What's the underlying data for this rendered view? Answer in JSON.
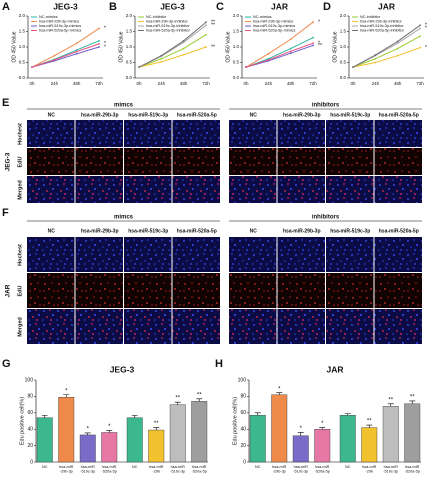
{
  "chart_data": [
    {
      "type": "line",
      "panel": "A",
      "title": "JEG-3",
      "ylabel": "OD 450 Value",
      "categories": [
        "0h",
        "24h",
        "48h",
        "72h"
      ],
      "ylim": [
        0,
        2
      ],
      "yticks": [
        {
          "value": 0,
          "label": "0.0"
        },
        0.5,
        {
          "value": 1,
          "label": "1.0"
        },
        1.5,
        {
          "value": 2,
          "label": "2.0"
        }
      ],
      "series": [
        {
          "name": "NC-mimics",
          "color": "#2bb5a0",
          "values": [
            0.35,
            0.6,
            0.9,
            1.2
          ]
        },
        {
          "name": "hsa-miR-29b-3p-mimics",
          "color": "#f08a4b",
          "values": [
            0.35,
            0.72,
            1.12,
            1.6
          ],
          "significance": "*"
        },
        {
          "name": "hsa-miR-519c-3p-mimics",
          "color": "#6a5acd",
          "values": [
            0.35,
            0.55,
            0.78,
            1.0
          ],
          "significance": "*"
        },
        {
          "name": "hsa-miR-520a-5p-mimics",
          "color": "#e75480",
          "values": [
            0.35,
            0.58,
            0.85,
            1.1
          ],
          "significance": "*"
        }
      ]
    },
    {
      "type": "line",
      "panel": "B",
      "title": "JEG-3",
      "ylabel": "OD 450 Value",
      "categories": [
        "0h",
        "24h",
        "48h",
        "72h"
      ],
      "ylim": [
        0,
        2
      ],
      "yticks": [
        {
          "value": 0,
          "label": "0.0"
        },
        0.5,
        {
          "value": 1,
          "label": "1.0"
        },
        1.5,
        {
          "value": 2,
          "label": "2.0"
        }
      ],
      "series": [
        {
          "name": "NC-inhibitor",
          "color": "#9acd32",
          "values": [
            0.35,
            0.62,
            0.95,
            1.4
          ]
        },
        {
          "name": "hsa-miR-29b-3p-inhibitor",
          "color": "#f2c12e",
          "values": [
            0.35,
            0.52,
            0.75,
            1.0
          ],
          "significance": "**"
        },
        {
          "name": "hsa-miR-519c-3p-inhibitor",
          "color": "#a9a9a9",
          "values": [
            0.35,
            0.7,
            1.15,
            1.7
          ],
          "significance": "**"
        },
        {
          "name": "hsa-miR-520a-5p-inhibitor",
          "color": "#707070",
          "values": [
            0.35,
            0.72,
            1.2,
            1.8
          ],
          "significance": "**"
        }
      ]
    },
    {
      "type": "line",
      "panel": "C",
      "title": "JAR",
      "ylabel": "OD 450 Value",
      "categories": [
        "0h",
        "24h",
        "48h",
        "72h"
      ],
      "ylim": [
        0,
        2
      ],
      "yticks": [
        {
          "value": 0,
          "label": "0.0"
        },
        0.5,
        {
          "value": 1,
          "label": "1.0"
        },
        1.5,
        {
          "value": 2,
          "label": "2.0"
        }
      ],
      "series": [
        {
          "name": "NC-mimics",
          "color": "#2bb5a0",
          "values": [
            0.35,
            0.62,
            0.95,
            1.3
          ]
        },
        {
          "name": "hsa-miR-29b-3p-mimics",
          "color": "#f08a4b",
          "values": [
            0.35,
            0.78,
            1.25,
            1.8
          ],
          "significance": "*"
        },
        {
          "name": "hsa-miR-519c-3p-mimics",
          "color": "#6a5acd",
          "values": [
            0.35,
            0.55,
            0.8,
            1.05
          ],
          "significance": "**"
        },
        {
          "name": "hsa-miR-520a-5p-mimics",
          "color": "#e75480",
          "values": [
            0.35,
            0.58,
            0.86,
            1.12
          ],
          "significance": "*"
        }
      ]
    },
    {
      "type": "line",
      "panel": "D",
      "title": "JAR",
      "ylabel": "OD 450 Value",
      "categories": [
        "0h",
        "24h",
        "48h",
        "72h"
      ],
      "ylim": [
        0,
        2
      ],
      "yticks": [
        {
          "value": 0,
          "label": "0.0"
        },
        0.5,
        {
          "value": 1,
          "label": "1.0"
        },
        1.5,
        {
          "value": 2,
          "label": "2.0"
        }
      ],
      "series": [
        {
          "name": "NC-inhibitor",
          "color": "#9acd32",
          "values": [
            0.35,
            0.62,
            0.95,
            1.35
          ]
        },
        {
          "name": "hsa-miR-29b-3p-inhibitor",
          "color": "#f2c12e",
          "values": [
            0.35,
            0.5,
            0.72,
            0.98
          ],
          "significance": "**"
        },
        {
          "name": "hsa-miR-519c-3p-inhibitor",
          "color": "#a9a9a9",
          "values": [
            0.35,
            0.72,
            1.12,
            1.6
          ],
          "significance": "**"
        },
        {
          "name": "hsa-miR-520a-5p-inhibitor",
          "color": "#707070",
          "values": [
            0.35,
            0.74,
            1.18,
            1.7
          ],
          "significance": "**"
        }
      ]
    },
    {
      "type": "bar",
      "panel": "G",
      "title": "JEG-3",
      "ylabel": "Edu positive cell(%)",
      "categories": [
        "NC",
        "hsa-miR-29b-3p",
        "hsa-miR-519c-3p",
        "hsa-miR-520a-5p",
        "NC",
        "hsa-miR-29b",
        "hsa-miR-519c-3p",
        "hsa-miR-520a-5p"
      ],
      "values": [
        54,
        79,
        33,
        36,
        54,
        39,
        70,
        74
      ],
      "errors": [
        3,
        3,
        2.5,
        2.5,
        3,
        3,
        3,
        3
      ],
      "colors": [
        "#3cb88f",
        "#f08a4b",
        "#7b6bc9",
        "#e778a6",
        "#3cb88f",
        "#f2c12e",
        "#bdbdbd",
        "#9e9e9e"
      ],
      "significance": [
        null,
        "*",
        "*",
        "*",
        null,
        "**",
        "**",
        "**"
      ],
      "ylim": [
        0,
        100
      ],
      "yticks": [
        0,
        20,
        40,
        60,
        80,
        100
      ]
    },
    {
      "type": "bar",
      "panel": "H",
      "title": "JAR",
      "ylabel": "Edu positive cell(%)",
      "categories": [
        "NC",
        "hsa-miR-29b-3p",
        "hsa-miR-519c-3p",
        "hsa-miR-520a-5p",
        "NC",
        "hsa-miR-29b",
        "hsa-miR-519c-3p",
        "hsa-miR-520a-5p"
      ],
      "values": [
        57,
        82,
        32,
        40,
        57,
        42,
        68,
        71
      ],
      "errors": [
        3,
        2.5,
        4,
        2,
        2,
        3,
        3,
        3.5
      ],
      "colors": [
        "#3cb88f",
        "#f08a4b",
        "#7b6bc9",
        "#e778a6",
        "#3cb88f",
        "#f2c12e",
        "#bdbdbd",
        "#9e9e9e"
      ],
      "significance": [
        null,
        "*",
        "*",
        "*",
        null,
        "**",
        "**",
        "**"
      ],
      "ylim": [
        0,
        100
      ],
      "yticks": [
        0,
        20,
        40,
        60,
        80,
        100
      ]
    }
  ],
  "panels": [
    {
      "label": "E",
      "cell_line": "JEG-3",
      "groups": [
        "mimcs",
        "inhibitors"
      ],
      "columns": [
        "NC",
        "hsa-miR-29b-3p",
        "hsa-miR-519c-3p",
        "hsa-miR-520a-5p",
        "NC",
        "hsa-miR-29b-3p",
        "hsa-miR-519c-3p",
        "hsa-miR-520a-5p"
      ],
      "rows": [
        "Hochest",
        "EdU",
        "Merged"
      ]
    },
    {
      "label": "F",
      "cell_line": "JAR",
      "groups": [
        "mimcs",
        "inhibitors"
      ],
      "columns": [
        "NC",
        "hsa-miR-29b-3p",
        "hsa-miR-519c-3p",
        "hsa-miR-520a-5p",
        "NC",
        "hsa-miR-29b-3p",
        "hsa-miR-519c-3p",
        "hsa-miR-520a-5p"
      ],
      "rows": [
        "Hochest",
        "EdU",
        "Merged"
      ]
    }
  ]
}
